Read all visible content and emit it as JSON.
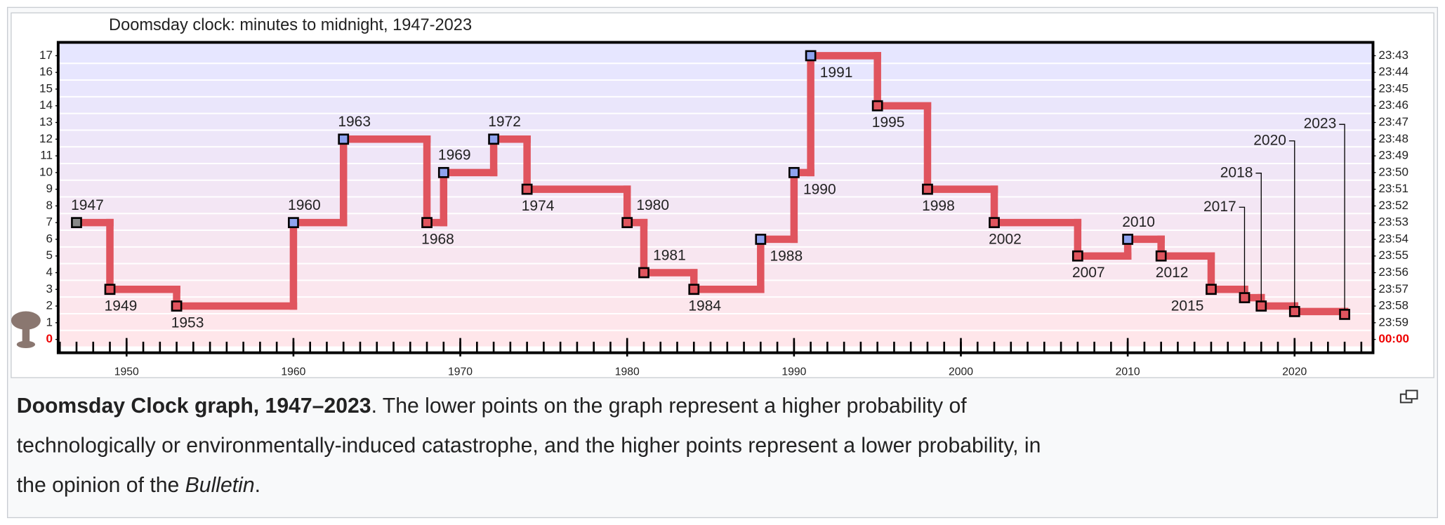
{
  "chart_data": {
    "type": "step",
    "title": "Doomsday clock: minutes to midnight, 1947-2023",
    "x": [
      1947,
      1949,
      1953,
      1960,
      1963,
      1968,
      1969,
      1972,
      1974,
      1980,
      1981,
      1984,
      1988,
      1990,
      1991,
      1995,
      1998,
      2002,
      2007,
      2010,
      2012,
      2015,
      2017,
      2018,
      2020,
      2023
    ],
    "values": [
      7,
      3,
      2,
      7,
      12,
      7,
      10,
      12,
      9,
      7,
      4,
      3,
      6,
      10,
      17,
      14,
      9,
      7,
      5,
      6,
      5,
      3,
      2.5,
      2,
      1.67,
      1.5
    ],
    "color": "#e0545e",
    "marker_colors": [
      "#888888",
      "#e0545e",
      "#e0545e",
      "#8fa3ef",
      "#8fa3ef",
      "#e0545e",
      "#8fa3ef",
      "#8fa3ef",
      "#e0545e",
      "#e0545e",
      "#e0545e",
      "#e0545e",
      "#8fa3ef",
      "#8fa3ef",
      "#8fa3ef",
      "#e0545e",
      "#e0545e",
      "#e0545e",
      "#e0545e",
      "#8fa3ef",
      "#e0545e",
      "#e0545e",
      "#e0545e",
      "#e0545e",
      "#e0545e",
      "#e0545e"
    ],
    "xlim": [
      1945.9,
      2024.7
    ],
    "xticks": [
      1950,
      1960,
      1970,
      1980,
      1990,
      2000,
      2010,
      2020
    ],
    "ylim": [
      -0.8,
      17.8
    ],
    "yticks": [
      0,
      1,
      2,
      3,
      4,
      5,
      6,
      7,
      8,
      9,
      10,
      11,
      12,
      13,
      14,
      15,
      16,
      17
    ],
    "y2lim": [
      -0.8,
      17.8
    ],
    "y2ticks": [
      {
        "value": 17,
        "label": "23:43"
      },
      {
        "value": 16,
        "label": "23:44"
      },
      {
        "value": 15,
        "label": "23:45"
      },
      {
        "value": 14,
        "label": "23:46"
      },
      {
        "value": 13,
        "label": "23:47"
      },
      {
        "value": 12,
        "label": "23:48"
      },
      {
        "value": 11,
        "label": "23:49"
      },
      {
        "value": 10,
        "label": "23:50"
      },
      {
        "value": 9,
        "label": "23:51"
      },
      {
        "value": 8,
        "label": "23:52"
      },
      {
        "value": 7,
        "label": "23:53"
      },
      {
        "value": 6,
        "label": "23:54"
      },
      {
        "value": 5,
        "label": "23:55"
      },
      {
        "value": 4,
        "label": "23:56"
      },
      {
        "value": 3,
        "label": "23:57"
      },
      {
        "value": 2,
        "label": "23:58"
      },
      {
        "value": 1,
        "label": "23:59"
      },
      {
        "value": 0,
        "label": "00:00"
      }
    ],
    "zero_label_color": "#ee0000"
  },
  "caption": {
    "lines": [
      [
        {
          "text": "Doomsday Clock graph, 1947–2023",
          "style": "bold"
        },
        {
          "text": ". The lower points on the graph represent a higher probability of",
          "style": "normal"
        }
      ],
      [
        {
          "text": "technologically or environmentally-induced catastrophe, and the higher points represent a lower probability, in",
          "style": "normal"
        }
      ],
      [
        {
          "text": "the opinion of the ",
          "style": "normal"
        },
        {
          "text": "Bulletin",
          "style": "italic"
        },
        {
          "text": ".",
          "style": "normal"
        }
      ]
    ]
  }
}
